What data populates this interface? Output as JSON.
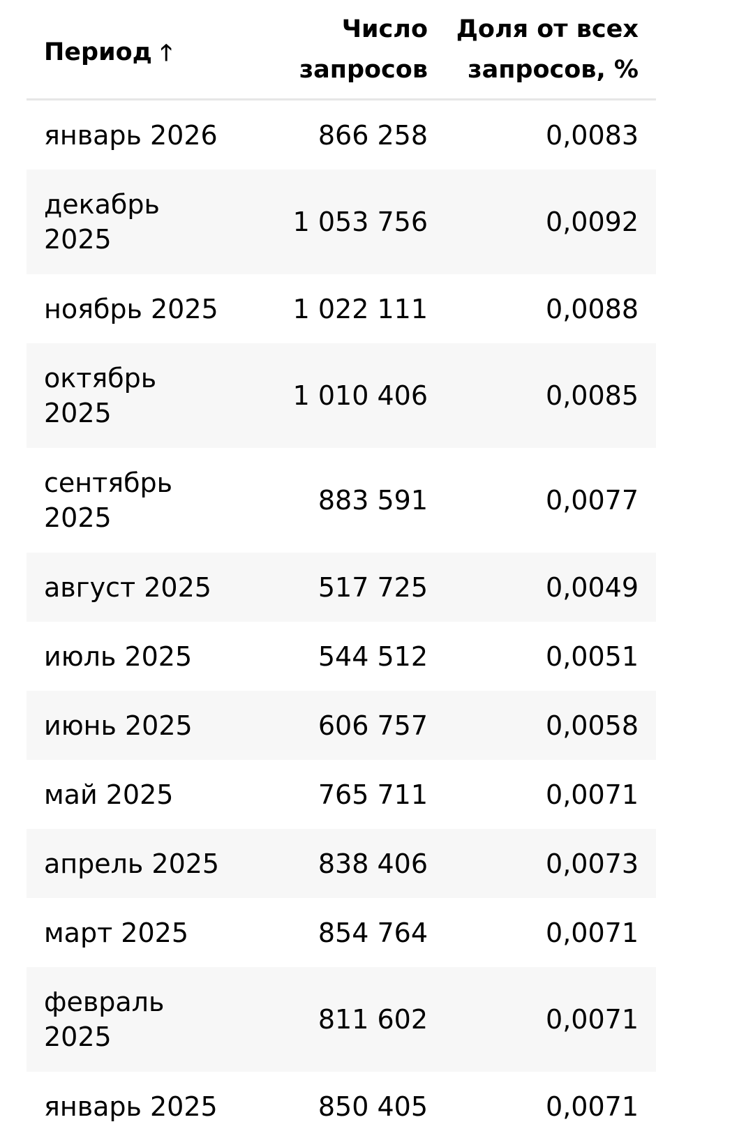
{
  "table": {
    "columns": {
      "period": "Период",
      "count": "Число запросов",
      "share": "Доля от всех запросов, %"
    },
    "sort_icon": "arrow-up-icon",
    "rows": [
      {
        "period": "январь 2026",
        "count": "866 258",
        "share": "0,0083"
      },
      {
        "period": "декабрь 2025",
        "count": "1 053 756",
        "share": "0,0092"
      },
      {
        "period": "ноябрь 2025",
        "count": "1 022 111",
        "share": "0,0088"
      },
      {
        "period": "октябрь 2025",
        "count": "1 010 406",
        "share": "0,0085"
      },
      {
        "period": "сентябрь 2025",
        "count": "883 591",
        "share": "0,0077"
      },
      {
        "period": "август 2025",
        "count": "517 725",
        "share": "0,0049"
      },
      {
        "period": "июль 2025",
        "count": "544 512",
        "share": "0,0051"
      },
      {
        "period": "июнь 2025",
        "count": "606 757",
        "share": "0,0058"
      },
      {
        "period": "май 2025",
        "count": "765 711",
        "share": "0,0071"
      },
      {
        "period": "апрель 2025",
        "count": "838 406",
        "share": "0,0073"
      },
      {
        "period": "март 2025",
        "count": "854 764",
        "share": "0,0071"
      },
      {
        "period": "февраль 2025",
        "count": "811 602",
        "share": "0,0071"
      },
      {
        "period": "январь 2025",
        "count": "850 405",
        "share": "0,0071"
      }
    ]
  }
}
